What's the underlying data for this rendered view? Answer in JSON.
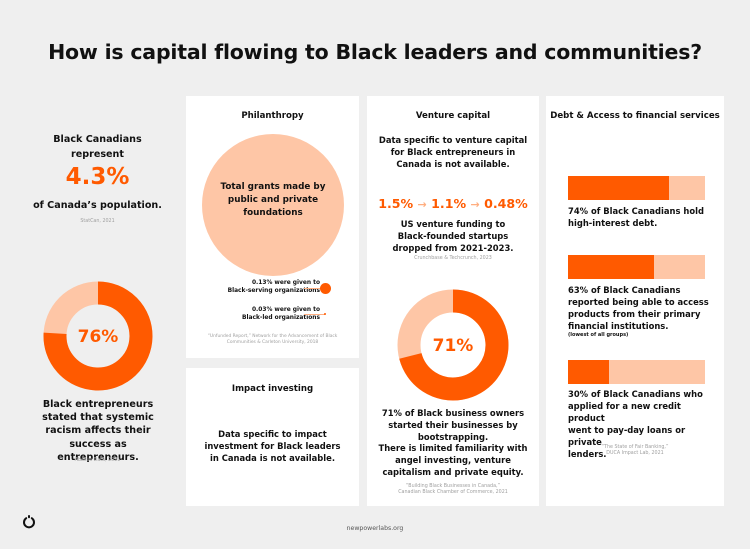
{
  "title": "How is capital flowing to Black leaders and communities?",
  "footer": {
    "url": "newpowerlabs.org"
  },
  "colors": {
    "accent": "#ff5a00",
    "light": "#fec6a6",
    "card": "#ffffff",
    "background": "#efefef"
  },
  "left": {
    "population_line1": "Black Canadians",
    "population_line2": "represent",
    "population_value": "4.3%",
    "population_line3": "of Canada’s population.",
    "population_source": "StatCan, 2021",
    "racism_value": "76%",
    "racism_line1": "Black entrepreneurs",
    "racism_line2": "stated that systemic",
    "racism_line3": "racism affects their",
    "racism_line4": "success as entrepreneurs.",
    "racism_source": "Abacus Data, 2021"
  },
  "philanthropy": {
    "heading": "Philanthropy",
    "circle_line1": "Total grants made by",
    "circle_line2": "public and private",
    "circle_line3": "foundations",
    "stat1_line1": "0.13% were given to",
    "stat1_line2": "Black-serving organizations",
    "stat2_line1": "0.03% were given to",
    "stat2_line2": "Black-led organizations",
    "source_line1": "“Unfunded Report,” Network for the Advancement of Black",
    "source_line2": "Communities & Carleton University, 2018"
  },
  "impact": {
    "heading": "Impact investing",
    "line1": "Data specific to impact",
    "line2": "investment for Black leaders",
    "line3": "in Canada is not available."
  },
  "venture": {
    "heading": "Venture capital",
    "line1": "Data specific to venture capital",
    "line2": "for Black entrepreneurs in",
    "line3": "Canada is not available.",
    "values": [
      "1.5%",
      "1.1%",
      "0.48%"
    ],
    "funding_line1": "US venture funding to",
    "funding_line2": "Black-founded startups",
    "funding_line3": "dropped from 2021-2023.",
    "funding_source": "Crunchbase & Techcrunch, 2023",
    "donut_value": "71%",
    "boot_line1": "71% of Black business owners",
    "boot_line2": "started their businesses by",
    "boot_line3": "bootstrapping.",
    "boot_line4": "There is limited familiarity with",
    "boot_line5": "angel investing, venture",
    "boot_line6": "capitalism and private equity.",
    "source_line1": "“Building Black Businesses in Canada,”",
    "source_line2": "Canadian Black Chamber of Commerce, 2021"
  },
  "debt": {
    "heading": "Debt & Access to financial services",
    "stat1_line1": "74% of Black Canadians hold",
    "stat1_line2": "high-interest debt.",
    "stat2_line1": "63% of Black Canadians",
    "stat2_line2": "reported being able to access",
    "stat2_line3": "products from their primary",
    "stat2_line4": "financial institutions.",
    "stat2_note": "(lowest of all groups)",
    "stat3_line1": "30% of Black Canadians who",
    "stat3_line2": "applied for a new credit product",
    "stat3_line3": "went to pay-day loans or private",
    "stat3_line4": "lenders.",
    "source_line1": "“The State of Fair Banking,”",
    "source_line2": "DUCA Impact Lab, 2021"
  },
  "chart_data": [
    {
      "type": "pie",
      "variant": "donut",
      "values": [
        76,
        24
      ],
      "center_label": "76%"
    },
    {
      "type": "pie",
      "variant": "donut",
      "values": [
        71,
        29
      ],
      "center_label": "71%"
    },
    {
      "type": "bar",
      "orientation": "horizontal",
      "values": [
        74,
        63,
        30
      ],
      "xlim": [
        0,
        100
      ]
    },
    {
      "type": "line",
      "categories": [
        "2021",
        "",
        "2023"
      ],
      "values": [
        1.5,
        1.1,
        0.48
      ]
    }
  ]
}
